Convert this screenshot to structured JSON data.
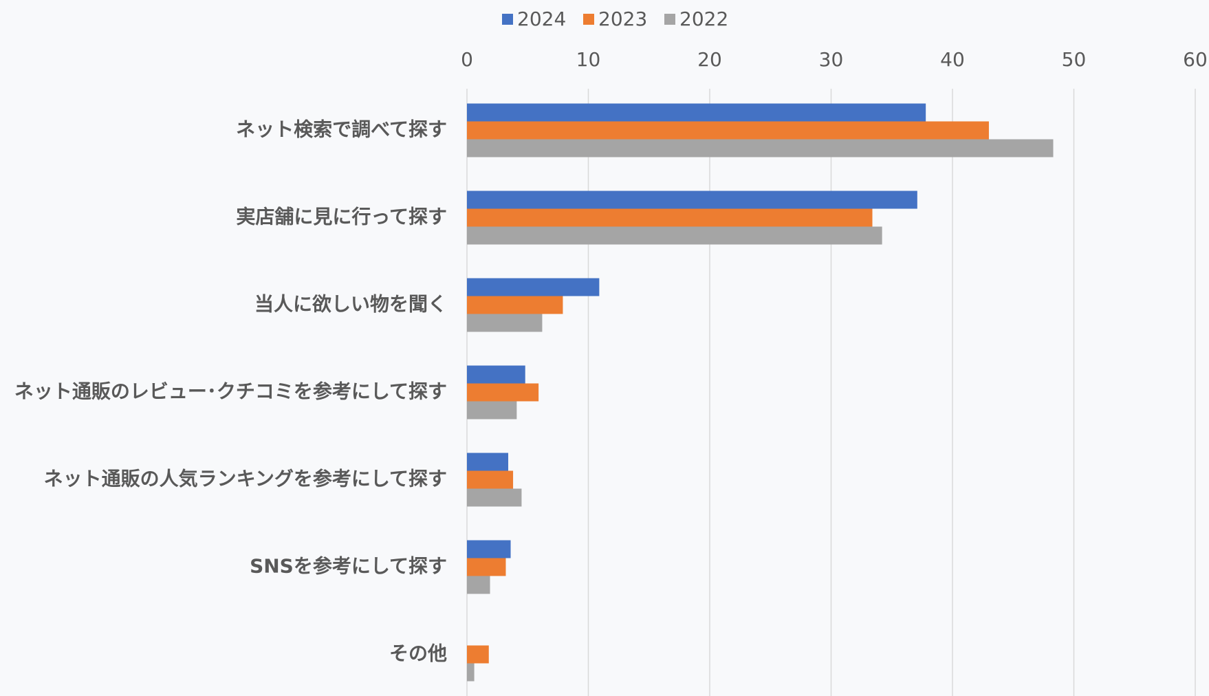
{
  "chart_data": {
    "type": "hbar",
    "categories": [
      "ネット検索で調べて探す",
      "実店舗に見に行って探す",
      "当人に欲しい物を聞く",
      "ネット通販のレビュー･クチコミを参考にして探す",
      "ネット通販の人気ランキングを参考にして探す",
      "SNSを参考にして探す",
      "その他"
    ],
    "series": [
      {
        "name": "2024",
        "color": "#4472c4",
        "values": [
          37.8,
          37.1,
          10.9,
          4.8,
          3.4,
          3.6,
          0
        ]
      },
      {
        "name": "2023",
        "color": "#ed7d31",
        "values": [
          43.0,
          33.4,
          7.9,
          5.9,
          3.8,
          3.2,
          1.8
        ]
      },
      {
        "name": "2022",
        "color": "#a5a5a5",
        "values": [
          48.3,
          34.2,
          6.2,
          4.1,
          4.5,
          1.9,
          0.6
        ]
      }
    ],
    "xlim": [
      0,
      60
    ],
    "xticks": [
      0,
      10,
      20,
      30,
      40,
      50,
      60
    ],
    "grid": true,
    "legend": "top"
  }
}
